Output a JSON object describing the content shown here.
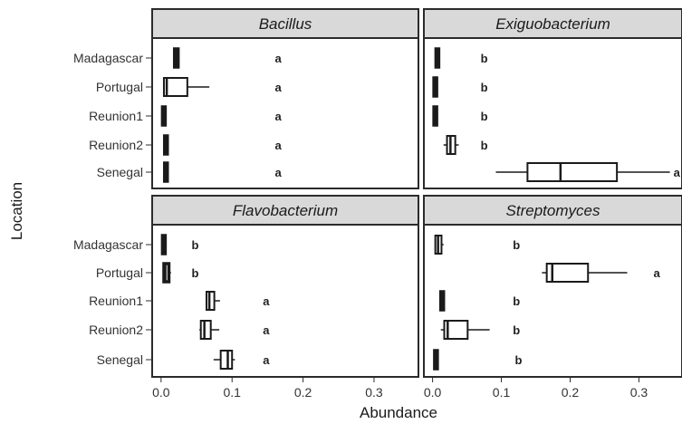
{
  "chart_data": {
    "type": "boxplot",
    "xlabel": "Abundance",
    "ylabel": "Location",
    "xlim": [
      -0.01,
      0.36
    ],
    "xticks": [
      "0.0",
      "0.1",
      "0.2",
      "0.3"
    ],
    "xtick_values": [
      0.0,
      0.1,
      0.2,
      0.3
    ],
    "categories": [
      "Madagascar",
      "Portugal",
      "Reunion1",
      "Reunion2",
      "Senegal"
    ],
    "grid": false,
    "colors": {
      "strip_bg": "#d9d9d9",
      "frame": "#2b2b2b",
      "box_fill": "#ffffff",
      "line": "#1a1a1a"
    },
    "panels": [
      {
        "title": "Bacillus",
        "groups": [
          {
            "location": "Madagascar",
            "whisker_low": 0.018,
            "q1": 0.019,
            "median": 0.021,
            "q3": 0.024,
            "whisker_high": 0.026,
            "letter": "a"
          },
          {
            "location": "Portugal",
            "whisker_low": 0.003,
            "q1": 0.004,
            "median": 0.008,
            "q3": 0.037,
            "whisker_high": 0.068,
            "letter": "a"
          },
          {
            "location": "Reunion1",
            "whisker_low": 0.001,
            "q1": 0.002,
            "median": 0.003,
            "q3": 0.004,
            "whisker_high": 0.005,
            "letter": "a"
          },
          {
            "location": "Reunion2",
            "whisker_low": 0.005,
            "q1": 0.005,
            "median": 0.006,
            "q3": 0.007,
            "whisker_high": 0.008,
            "letter": "a"
          },
          {
            "location": "Senegal",
            "whisker_low": 0.005,
            "q1": 0.005,
            "median": 0.006,
            "q3": 0.007,
            "whisker_high": 0.008,
            "letter": "a"
          }
        ]
      },
      {
        "title": "Exiguobacterium",
        "groups": [
          {
            "location": "Madagascar",
            "whisker_low": 0.005,
            "q1": 0.005,
            "median": 0.006,
            "q3": 0.007,
            "whisker_high": 0.008,
            "letter": "b"
          },
          {
            "location": "Portugal",
            "whisker_low": 0.002,
            "q1": 0.002,
            "median": 0.003,
            "q3": 0.004,
            "whisker_high": 0.005,
            "letter": "b"
          },
          {
            "location": "Reunion1",
            "whisker_low": 0.002,
            "q1": 0.002,
            "median": 0.003,
            "q3": 0.004,
            "whisker_high": 0.005,
            "letter": "b"
          },
          {
            "location": "Reunion2",
            "whisker_low": 0.016,
            "q1": 0.021,
            "median": 0.026,
            "q3": 0.033,
            "whisker_high": 0.038,
            "letter": "b"
          },
          {
            "location": "Senegal",
            "whisker_low": 0.092,
            "q1": 0.138,
            "median": 0.186,
            "q3": 0.268,
            "whisker_high": 0.345,
            "letter": "a"
          }
        ]
      },
      {
        "title": "Flavobacterium",
        "groups": [
          {
            "location": "Madagascar",
            "whisker_low": 0.002,
            "q1": 0.002,
            "median": 0.003,
            "q3": 0.004,
            "whisker_high": 0.005,
            "letter": "b"
          },
          {
            "location": "Portugal",
            "whisker_low": 0.004,
            "q1": 0.004,
            "median": 0.006,
            "q3": 0.011,
            "whisker_high": 0.014,
            "letter": "b"
          },
          {
            "location": "Reunion1",
            "whisker_low": 0.064,
            "q1": 0.064,
            "median": 0.068,
            "q3": 0.075,
            "whisker_high": 0.083,
            "letter": "a"
          },
          {
            "location": "Reunion2",
            "whisker_low": 0.054,
            "q1": 0.056,
            "median": 0.061,
            "q3": 0.07,
            "whisker_high": 0.082,
            "letter": "a"
          },
          {
            "location": "Senegal",
            "whisker_low": 0.074,
            "q1": 0.084,
            "median": 0.094,
            "q3": 0.1,
            "whisker_high": 0.104,
            "letter": "a"
          }
        ]
      },
      {
        "title": "Streptomyces",
        "groups": [
          {
            "location": "Madagascar",
            "whisker_low": 0.004,
            "q1": 0.004,
            "median": 0.008,
            "q3": 0.013,
            "whisker_high": 0.016,
            "letter": "b"
          },
          {
            "location": "Portugal",
            "whisker_low": 0.159,
            "q1": 0.166,
            "median": 0.174,
            "q3": 0.226,
            "whisker_high": 0.283,
            "letter": "a"
          },
          {
            "location": "Reunion1",
            "whisker_low": 0.012,
            "q1": 0.012,
            "median": 0.013,
            "q3": 0.015,
            "whisker_high": 0.016,
            "letter": "b"
          },
          {
            "location": "Reunion2",
            "whisker_low": 0.012,
            "q1": 0.017,
            "median": 0.022,
            "q3": 0.051,
            "whisker_high": 0.083,
            "letter": "b"
          },
          {
            "location": "Senegal",
            "whisker_low": 0.003,
            "q1": 0.003,
            "median": 0.004,
            "q3": 0.005,
            "whisker_high": 0.006,
            "letter": "b"
          }
        ]
      }
    ]
  }
}
